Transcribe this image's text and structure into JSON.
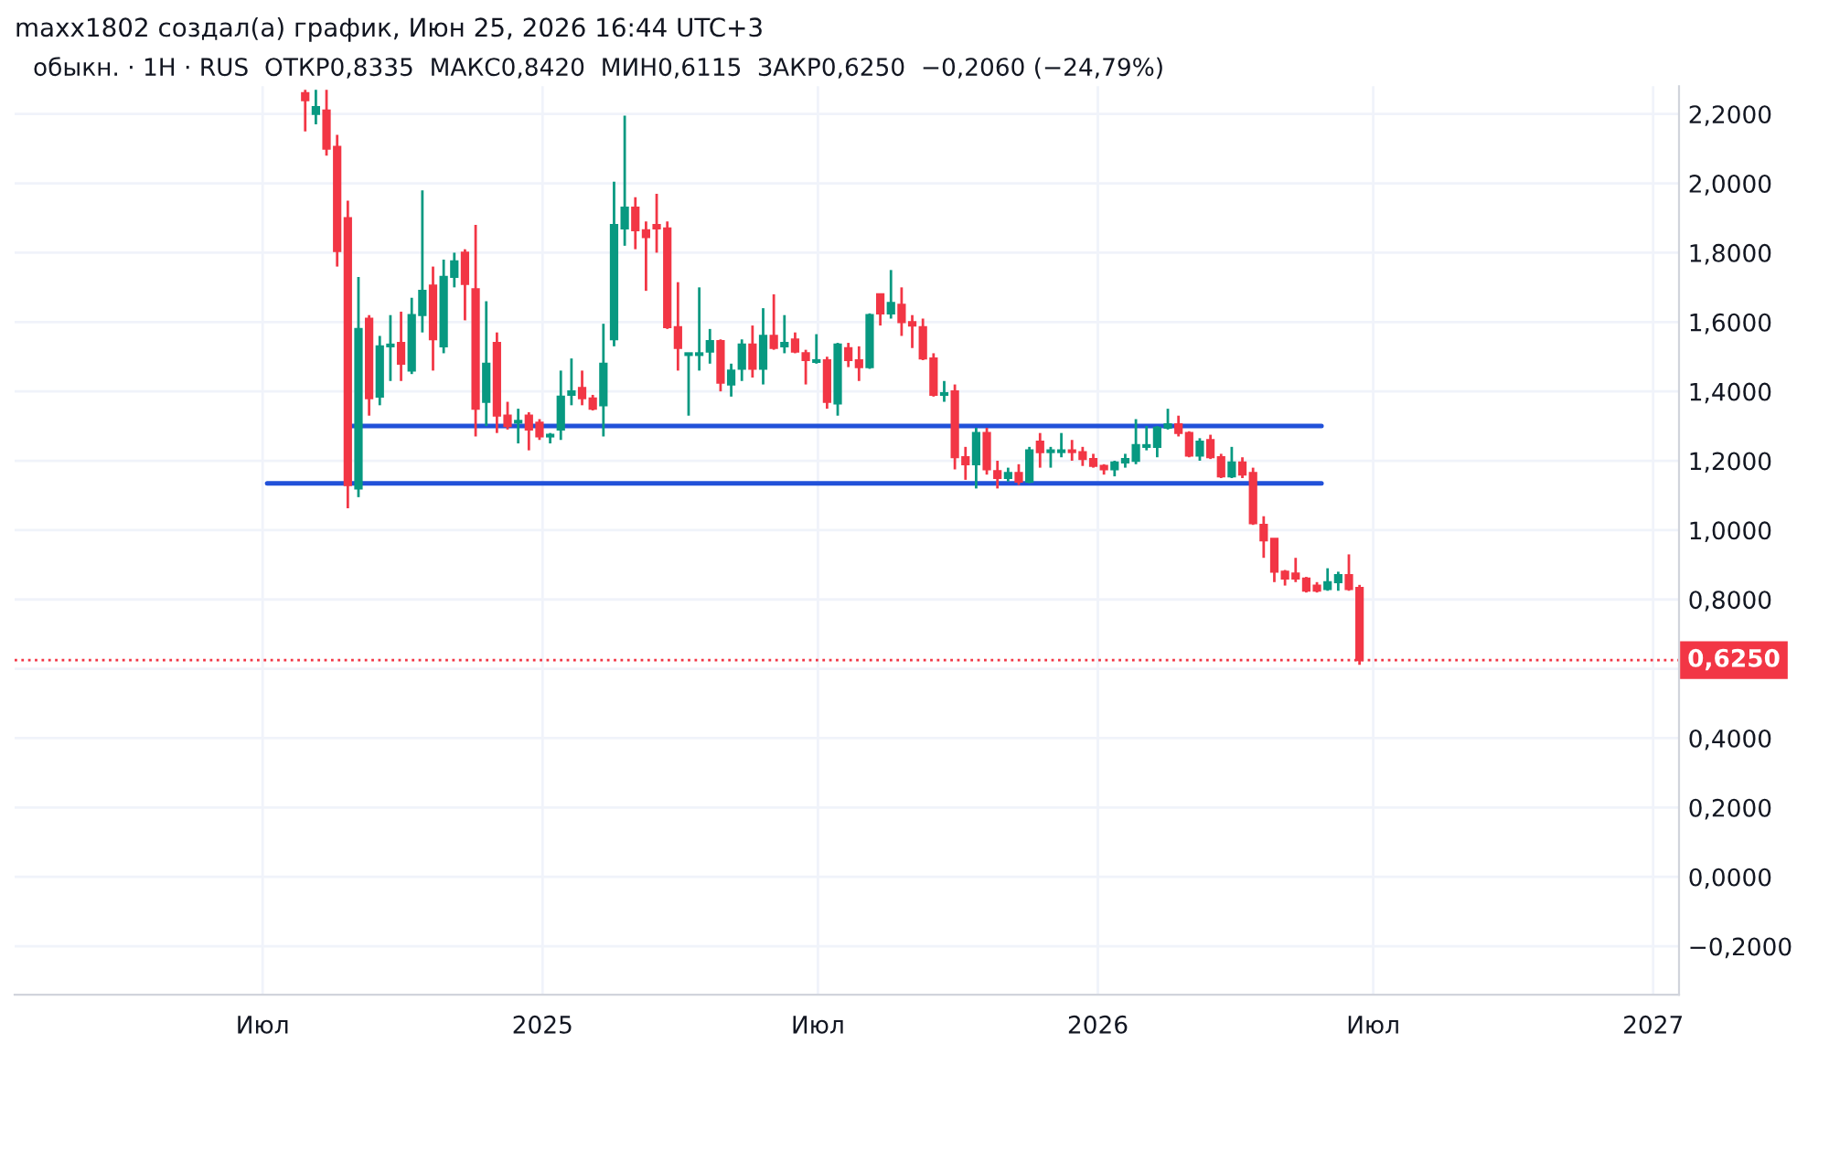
{
  "chart_data": {
    "type": "candlestick",
    "title": "maxx1802 создал(а) график, Июн 25, 2026 16:44 UTC+3",
    "subtitle": "обыкн. · 1H · RUS  ОТКР0,8335  МАКС0,8420  МИН0,6115  ЗАКР0,6250  −0,2060 (−24,79%)",
    "x": [
      "2024-07-29",
      "2024-08-05",
      "2024-08-12",
      "2024-08-19",
      "2024-08-26",
      "2024-09-02",
      "2024-09-09",
      "2024-09-16",
      "2024-09-23",
      "2024-09-30",
      "2024-10-07",
      "2024-10-14",
      "2024-10-21",
      "2024-10-28",
      "2024-11-04",
      "2024-11-11",
      "2024-11-18",
      "2024-11-25",
      "2024-12-02",
      "2024-12-09",
      "2024-12-16",
      "2024-12-23",
      "2024-12-30",
      "2025-01-06",
      "2025-01-13",
      "2025-01-20",
      "2025-01-27",
      "2025-02-03",
      "2025-02-10",
      "2025-02-17",
      "2025-02-24",
      "2025-03-03",
      "2025-03-10",
      "2025-03-17",
      "2025-03-24",
      "2025-03-31",
      "2025-04-07",
      "2025-04-14",
      "2025-04-21",
      "2025-04-28",
      "2025-05-05",
      "2025-05-12",
      "2025-05-19",
      "2025-05-26",
      "2025-06-02",
      "2025-06-09",
      "2025-06-16",
      "2025-06-23",
      "2025-06-30",
      "2025-07-07",
      "2025-07-14",
      "2025-07-21",
      "2025-07-28",
      "2025-08-04",
      "2025-08-11",
      "2025-08-18",
      "2025-08-25",
      "2025-09-01",
      "2025-09-08",
      "2025-09-15",
      "2025-09-22",
      "2025-09-29",
      "2025-10-06",
      "2025-10-13",
      "2025-10-20",
      "2025-10-27",
      "2025-11-03",
      "2025-11-10",
      "2025-11-17",
      "2025-11-24",
      "2025-12-01",
      "2025-12-08",
      "2025-12-15",
      "2025-12-22",
      "2025-12-29",
      "2026-01-05",
      "2026-01-12",
      "2026-01-19",
      "2026-01-26",
      "2026-02-02",
      "2026-02-09",
      "2026-02-16",
      "2026-02-23",
      "2026-03-02",
      "2026-03-09",
      "2026-03-16",
      "2026-03-23",
      "2026-03-30",
      "2026-04-06",
      "2026-04-13",
      "2026-04-20",
      "2026-04-27",
      "2026-05-04",
      "2026-05-11",
      "2026-05-18",
      "2026-05-25",
      "2026-06-01",
      "2026-06-08",
      "2026-06-15",
      "2026-06-22"
    ],
    "ohlc": [
      [
        2.26,
        2.27,
        2.15,
        2.24
      ],
      [
        2.2,
        2.27,
        2.17,
        2.22
      ],
      [
        2.21,
        2.27,
        2.08,
        2.1
      ],
      [
        2.105,
        2.14,
        1.76,
        1.805
      ],
      [
        1.9,
        1.95,
        1.063,
        1.13
      ],
      [
        1.12,
        1.73,
        1.095,
        1.58
      ],
      [
        1.61,
        1.62,
        1.33,
        1.38
      ],
      [
        1.385,
        1.56,
        1.36,
        1.53
      ],
      [
        1.53,
        1.62,
        1.43,
        1.535
      ],
      [
        1.54,
        1.63,
        1.43,
        1.48
      ],
      [
        1.46,
        1.67,
        1.45,
        1.62
      ],
      [
        1.62,
        1.98,
        1.57,
        1.69
      ],
      [
        1.705,
        1.76,
        1.46,
        1.55
      ],
      [
        1.53,
        1.78,
        1.51,
        1.73
      ],
      [
        1.73,
        1.8,
        1.7,
        1.775
      ],
      [
        1.8,
        1.81,
        1.605,
        1.71
      ],
      [
        1.695,
        1.88,
        1.27,
        1.35
      ],
      [
        1.37,
        1.66,
        1.3,
        1.48
      ],
      [
        1.54,
        1.57,
        1.28,
        1.33
      ],
      [
        1.33,
        1.37,
        1.29,
        1.3
      ],
      [
        1.31,
        1.35,
        1.25,
        1.315
      ],
      [
        1.33,
        1.34,
        1.23,
        1.29
      ],
      [
        1.31,
        1.32,
        1.26,
        1.27
      ],
      [
        1.27,
        1.28,
        1.25,
        1.275
      ],
      [
        1.29,
        1.46,
        1.26,
        1.385
      ],
      [
        1.39,
        1.495,
        1.36,
        1.4
      ],
      [
        1.41,
        1.46,
        1.36,
        1.38
      ],
      [
        1.38,
        1.39,
        1.345,
        1.35
      ],
      [
        1.36,
        1.595,
        1.27,
        1.48
      ],
      [
        1.55,
        2.005,
        1.53,
        1.88
      ],
      [
        1.87,
        2.195,
        1.82,
        1.93
      ],
      [
        1.93,
        1.96,
        1.81,
        1.865
      ],
      [
        1.865,
        1.89,
        1.69,
        1.845
      ],
      [
        1.88,
        1.97,
        1.8,
        1.87
      ],
      [
        1.87,
        1.89,
        1.58,
        1.585
      ],
      [
        1.585,
        1.715,
        1.46,
        1.525
      ],
      [
        1.505,
        1.51,
        1.33,
        1.51
      ],
      [
        1.505,
        1.7,
        1.46,
        1.51
      ],
      [
        1.515,
        1.58,
        1.48,
        1.545
      ],
      [
        1.545,
        1.55,
        1.4,
        1.425
      ],
      [
        1.42,
        1.48,
        1.385,
        1.46
      ],
      [
        1.465,
        1.55,
        1.43,
        1.535
      ],
      [
        1.535,
        1.59,
        1.44,
        1.465
      ],
      [
        1.465,
        1.64,
        1.42,
        1.56
      ],
      [
        1.56,
        1.68,
        1.52,
        1.525
      ],
      [
        1.53,
        1.62,
        1.51,
        1.54
      ],
      [
        1.55,
        1.57,
        1.51,
        1.515
      ],
      [
        1.51,
        1.52,
        1.42,
        1.49
      ],
      [
        1.485,
        1.565,
        1.48,
        1.49
      ],
      [
        1.49,
        1.5,
        1.35,
        1.37
      ],
      [
        1.365,
        1.54,
        1.33,
        1.535
      ],
      [
        1.525,
        1.54,
        1.47,
        1.49
      ],
      [
        1.49,
        1.53,
        1.43,
        1.47
      ],
      [
        1.47,
        1.625,
        1.465,
        1.62
      ],
      [
        1.68,
        1.68,
        1.59,
        1.625
      ],
      [
        1.625,
        1.75,
        1.61,
        1.655
      ],
      [
        1.65,
        1.7,
        1.56,
        1.6
      ],
      [
        1.6,
        1.62,
        1.525,
        1.59
      ],
      [
        1.585,
        1.61,
        1.49,
        1.495
      ],
      [
        1.495,
        1.51,
        1.385,
        1.39
      ],
      [
        1.39,
        1.43,
        1.37,
        1.395
      ],
      [
        1.4,
        1.42,
        1.175,
        1.21
      ],
      [
        1.21,
        1.24,
        1.145,
        1.19
      ],
      [
        1.19,
        1.295,
        1.12,
        1.28
      ],
      [
        1.28,
        1.295,
        1.16,
        1.175
      ],
      [
        1.17,
        1.2,
        1.12,
        1.15
      ],
      [
        1.15,
        1.18,
        1.14,
        1.165
      ],
      [
        1.165,
        1.19,
        1.13,
        1.14
      ],
      [
        1.14,
        1.24,
        1.135,
        1.23
      ],
      [
        1.255,
        1.28,
        1.18,
        1.225
      ],
      [
        1.225,
        1.24,
        1.18,
        1.23
      ],
      [
        1.225,
        1.28,
        1.21,
        1.23
      ],
      [
        1.23,
        1.26,
        1.2,
        1.225
      ],
      [
        1.225,
        1.24,
        1.185,
        1.205
      ],
      [
        1.205,
        1.22,
        1.18,
        1.185
      ],
      [
        1.185,
        1.19,
        1.16,
        1.175
      ],
      [
        1.175,
        1.2,
        1.155,
        1.195
      ],
      [
        1.195,
        1.22,
        1.18,
        1.205
      ],
      [
        1.2,
        1.32,
        1.19,
        1.245
      ],
      [
        1.24,
        1.3,
        1.23,
        1.245
      ],
      [
        1.24,
        1.3,
        1.21,
        1.295
      ],
      [
        1.295,
        1.35,
        1.29,
        1.305
      ],
      [
        1.305,
        1.33,
        1.27,
        1.28
      ],
      [
        1.28,
        1.285,
        1.21,
        1.215
      ],
      [
        1.215,
        1.265,
        1.2,
        1.255
      ],
      [
        1.26,
        1.275,
        1.205,
        1.21
      ],
      [
        1.21,
        1.22,
        1.15,
        1.155
      ],
      [
        1.155,
        1.24,
        1.15,
        1.195
      ],
      [
        1.195,
        1.21,
        1.15,
        1.16
      ],
      [
        1.165,
        1.18,
        1.015,
        1.02
      ],
      [
        1.015,
        1.04,
        0.92,
        0.97
      ],
      [
        0.975,
        0.975,
        0.85,
        0.88
      ],
      [
        0.88,
        0.885,
        0.84,
        0.86
      ],
      [
        0.875,
        0.92,
        0.85,
        0.86
      ],
      [
        0.86,
        0.865,
        0.82,
        0.825
      ],
      [
        0.84,
        0.85,
        0.82,
        0.825
      ],
      [
        0.83,
        0.89,
        0.825,
        0.85
      ],
      [
        0.85,
        0.88,
        0.825,
        0.87
      ],
      [
        0.87,
        0.93,
        0.825,
        0.83
      ],
      [
        0.8335,
        0.842,
        0.6115,
        0.625
      ]
    ],
    "colors": [
      "#f23645",
      "#089981",
      "#f23645",
      "#f23645",
      "#f23645",
      "#089981",
      "#f23645",
      "#089981",
      "#089981",
      "#f23645",
      "#089981",
      "#089981",
      "#f23645",
      "#089981",
      "#089981",
      "#f23645",
      "#f23645",
      "#089981",
      "#f23645",
      "#f23645",
      "#089981",
      "#f23645",
      "#f23645",
      "#089981",
      "#089981",
      "#089981",
      "#f23645",
      "#f23645",
      "#089981",
      "#089981",
      "#089981",
      "#f23645",
      "#f23645",
      "#f23645",
      "#f23645",
      "#f23645",
      "#089981",
      "#089981",
      "#089981",
      "#f23645",
      "#089981",
      "#089981",
      "#f23645",
      "#089981",
      "#f23645",
      "#089981",
      "#f23645",
      "#f23645",
      "#089981",
      "#f23645",
      "#089981",
      "#f23645",
      "#f23645",
      "#089981",
      "#f23645",
      "#089981",
      "#f23645",
      "#f23645",
      "#f23645",
      "#f23645",
      "#089981",
      "#f23645",
      "#f23645",
      "#089981",
      "#f23645",
      "#f23645",
      "#089981",
      "#f23645",
      "#089981",
      "#f23645",
      "#089981",
      "#089981",
      "#f23645",
      "#f23645",
      "#f23645",
      "#f23645",
      "#089981",
      "#089981",
      "#089981",
      "#089981",
      "#089981",
      "#089981",
      "#f23645",
      "#f23645",
      "#089981",
      "#f23645",
      "#f23645",
      "#089981",
      "#f23645",
      "#f23645",
      "#f23645",
      "#f23645",
      "#f23645",
      "#f23645",
      "#f23645",
      "#f23645",
      "#089981",
      "#089981",
      "#f23645",
      "#f23645"
    ],
    "series": [
      {
        "type": "line",
        "x": [
          "2024-08-28",
          "2026-05-28"
        ],
        "values": [
          1.3,
          1.3
        ],
        "color": "#2151d9"
      },
      {
        "type": "line",
        "x": [
          "2024-07-04",
          "2026-05-28"
        ],
        "values": [
          1.135,
          1.135
        ],
        "color": "#2151d9"
      }
    ],
    "ref_lines": [
      {
        "axis": "y",
        "value": 0.625,
        "label": "0,6250",
        "color": "#f23645",
        "line_style": "dotted"
      }
    ],
    "xlim": [
      "2024-01-20",
      "2027-01-18"
    ],
    "xticks": [
      {
        "value": "2024-07-01",
        "label": "Июл"
      },
      {
        "value": "2025-01-01",
        "label": "2025"
      },
      {
        "value": "2025-07-01",
        "label": "Июл"
      },
      {
        "value": "2026-01-01",
        "label": "2026"
      },
      {
        "value": "2026-07-01",
        "label": "Июл"
      },
      {
        "value": "2027-01-01",
        "label": "2027"
      }
    ],
    "ylim": [
      -0.34,
      2.28
    ],
    "yticks": [
      {
        "value": -0.2,
        "label": "−0,2000"
      },
      {
        "value": 0.0,
        "label": "0,0000"
      },
      {
        "value": 0.2,
        "label": "0,2000"
      },
      {
        "value": 0.4,
        "label": "0,4000"
      },
      {
        "value": 0.6,
        "label": null
      },
      {
        "value": 0.8,
        "label": "0,8000"
      },
      {
        "value": 1.0,
        "label": "1,0000"
      },
      {
        "value": 1.2,
        "label": "1,2000"
      },
      {
        "value": 1.4,
        "label": "1,4000"
      },
      {
        "value": 1.6,
        "label": "1,6000"
      },
      {
        "value": 1.8,
        "label": "1,8000"
      },
      {
        "value": 2.0,
        "label": "2,0000"
      },
      {
        "value": 2.2,
        "label": "2,2000"
      }
    ],
    "grid": true
  }
}
